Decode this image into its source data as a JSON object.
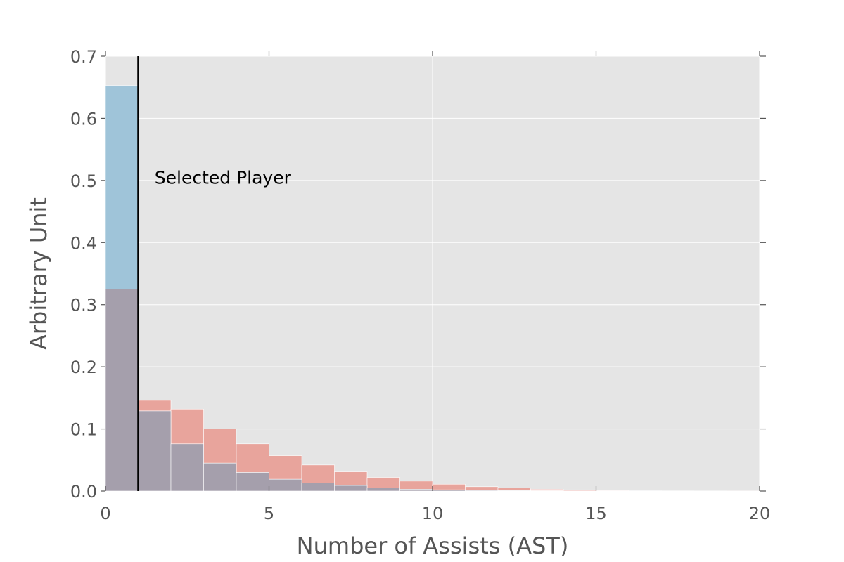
{
  "chart_data": {
    "type": "bar",
    "title": "",
    "xlabel": "Number of Assists (AST)",
    "ylabel": "Arbitrary Unit",
    "xlim": [
      0,
      20
    ],
    "ylim": [
      0,
      0.7
    ],
    "xticks": [
      0,
      5,
      10,
      15,
      20
    ],
    "xtick_labels": [
      "0",
      "5",
      "10",
      "15",
      "20"
    ],
    "yticks": [
      0.0,
      0.1,
      0.2,
      0.3,
      0.4,
      0.5,
      0.6,
      0.7
    ],
    "ytick_labels": [
      "0.0",
      "0.1",
      "0.2",
      "0.3",
      "0.4",
      "0.5",
      "0.6",
      "0.7"
    ],
    "grid": true,
    "bin_width": 1,
    "bin_edges": [
      0,
      1,
      2,
      3,
      4,
      5,
      6,
      7,
      8,
      9,
      10,
      11,
      12,
      13,
      14,
      15,
      16,
      17,
      18,
      19,
      20
    ],
    "series": [
      {
        "color": "#e8a49c",
        "values": [
          0.325,
          0.146,
          0.132,
          0.1,
          0.076,
          0.057,
          0.042,
          0.031,
          0.022,
          0.016,
          0.011,
          0.007,
          0.005,
          0.003,
          0.002,
          0.001,
          0.0005,
          0.0003,
          0.0002,
          0.0001
        ]
      },
      {
        "color": "#9fc4d9",
        "values": [
          0.653,
          0.129,
          0.076,
          0.045,
          0.03,
          0.019,
          0.013,
          0.009,
          0.005,
          0.003,
          0.002,
          0.001,
          0.0008,
          0.0005,
          0.0003,
          0.0002,
          0.0001,
          0,
          0,
          0
        ]
      }
    ],
    "overlap_color": "#a59fac",
    "vline": {
      "x": 1,
      "color": "#000000"
    },
    "annotations": [
      {
        "text": "Selected Player",
        "x": 1.5,
        "y": 0.505
      }
    ],
    "colors": {
      "background": "#e5e5e5",
      "grid": "#ffffff",
      "ticks": "#555555"
    }
  }
}
